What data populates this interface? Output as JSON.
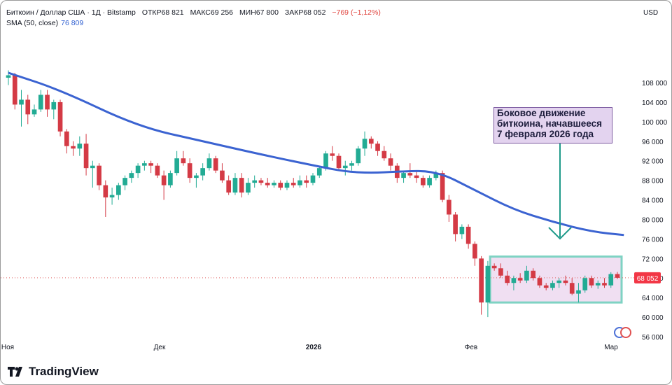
{
  "header": {
    "symbol": "Биткоин / Доллар США · 1Д · Bitstamp",
    "open": "ОТКР68 821",
    "high": "МАКС69 256",
    "low": "МИН67 800",
    "close": "ЗАКР68 052",
    "change": "−769 (−1,12%)"
  },
  "indicator": {
    "label": "SMA (50, close)",
    "value": "76 809"
  },
  "currency": "USD",
  "price_tag": "68 052",
  "annotation": [
    "Боковое движение",
    "биткоина, начавшееся",
    "7 февраля 2026 года"
  ],
  "brand": "TradingView",
  "colors": {
    "up": "#22ab94",
    "down": "#d43a45",
    "sma": "#3b63d1",
    "box_border": "#7fd3c3",
    "box_fill": "#f0dff2",
    "arrow": "#1f9a8a",
    "price_tag": "#f23645"
  },
  "chart_data": {
    "type": "candlestick",
    "title": "Биткоин / Доллар США · 1Д · Bitstamp",
    "y_axis": {
      "ticks": [
        56000,
        60000,
        64000,
        68000,
        72000,
        76000,
        80000,
        84000,
        88000,
        92000,
        96000,
        100000,
        104000,
        108000
      ],
      "tick_labels": [
        "56 000",
        "60 000",
        "64 000",
        "68 000",
        "72 000",
        "76 000",
        "80 000",
        "84 000",
        "88 000",
        "92 000",
        "96 000",
        "100 000",
        "104 000",
        "108 000"
      ],
      "range": [
        55000,
        112000
      ]
    },
    "x_axis": {
      "labels": [
        "Ноя",
        "Дек",
        "2026",
        "Фев",
        "Мар"
      ]
    },
    "ohlc": [
      [
        109000,
        110500,
        107500,
        109500
      ],
      [
        109500,
        110000,
        102500,
        103500
      ],
      [
        103500,
        106500,
        99000,
        104500
      ],
      [
        104500,
        105500,
        99500,
        101500
      ],
      [
        101500,
        103500,
        101000,
        102500
      ],
      [
        102500,
        106500,
        102000,
        105500
      ],
      [
        105500,
        106500,
        101000,
        102500
      ],
      [
        102500,
        104500,
        100500,
        104000
      ],
      [
        104000,
        104500,
        97000,
        98000
      ],
      [
        98000,
        98500,
        93500,
        95000
      ],
      [
        95000,
        96000,
        93000,
        94500
      ],
      [
        94500,
        97000,
        93000,
        95500
      ],
      [
        95500,
        97500,
        89000,
        90500
      ],
      [
        90500,
        92000,
        86500,
        91000
      ],
      [
        91000,
        91500,
        86000,
        87000
      ],
      [
        87000,
        88000,
        80500,
        84500
      ],
      [
        84500,
        86500,
        83000,
        85000
      ],
      [
        85000,
        87500,
        84000,
        87000
      ],
      [
        87000,
        89000,
        86000,
        88500
      ],
      [
        88500,
        90000,
        87500,
        89500
      ],
      [
        89500,
        91500,
        88500,
        91000
      ],
      [
        91000,
        92000,
        90000,
        91500
      ],
      [
        91500,
        92000,
        89500,
        91000
      ],
      [
        91000,
        91500,
        88500,
        89000
      ],
      [
        89000,
        90000,
        84000,
        87000
      ],
      [
        87000,
        90000,
        86500,
        89500
      ],
      [
        89500,
        94000,
        89000,
        92500
      ],
      [
        92500,
        94000,
        91000,
        91500
      ],
      [
        91500,
        92500,
        87500,
        88500
      ],
      [
        88500,
        89500,
        86500,
        89000
      ],
      [
        89000,
        91500,
        88000,
        90500
      ],
      [
        90500,
        93500,
        90000,
        92500
      ],
      [
        92500,
        93000,
        89500,
        90000
      ],
      [
        90000,
        91500,
        87500,
        88000
      ],
      [
        88000,
        89000,
        85000,
        85500
      ],
      [
        85500,
        89500,
        85000,
        88500
      ],
      [
        88500,
        89500,
        84500,
        85500
      ],
      [
        85500,
        88500,
        85000,
        87500
      ],
      [
        87500,
        89000,
        86500,
        88000
      ],
      [
        88000,
        88500,
        87000,
        87500
      ],
      [
        87500,
        88500,
        86500,
        87000
      ],
      [
        87000,
        88000,
        86500,
        87500
      ],
      [
        87500,
        88000,
        86000,
        86500
      ],
      [
        86500,
        88000,
        86000,
        87500
      ],
      [
        87500,
        88500,
        86500,
        87000
      ],
      [
        87000,
        89000,
        86500,
        88000
      ],
      [
        88000,
        89000,
        86500,
        87500
      ],
      [
        87500,
        89500,
        87000,
        89000
      ],
      [
        89000,
        91000,
        88500,
        90500
      ],
      [
        90500,
        94000,
        90000,
        93500
      ],
      [
        93500,
        95000,
        92000,
        93000
      ],
      [
        93000,
        93500,
        90000,
        90500
      ],
      [
        90500,
        92000,
        89000,
        91000
      ],
      [
        91000,
        92000,
        90000,
        91500
      ],
      [
        91500,
        95000,
        91000,
        94500
      ],
      [
        94500,
        98000,
        93000,
        96500
      ],
      [
        96500,
        97000,
        94500,
        95500
      ],
      [
        95500,
        96000,
        93000,
        94000
      ],
      [
        94000,
        95000,
        92000,
        92500
      ],
      [
        92500,
        93500,
        90000,
        91000
      ],
      [
        91000,
        91500,
        87500,
        88500
      ],
      [
        88500,
        90000,
        87500,
        89500
      ],
      [
        89500,
        91500,
        88500,
        89000
      ],
      [
        89000,
        90000,
        87500,
        88500
      ],
      [
        88500,
        89000,
        86500,
        87000
      ],
      [
        87000,
        89000,
        86500,
        88500
      ],
      [
        88500,
        90000,
        88000,
        89500
      ],
      [
        89500,
        90000,
        83500,
        84000
      ],
      [
        84000,
        85000,
        79500,
        81000
      ],
      [
        81000,
        81500,
        75500,
        77000
      ],
      [
        77000,
        79000,
        76000,
        78500
      ],
      [
        78500,
        79000,
        74000,
        75000
      ],
      [
        75000,
        75500,
        70500,
        72000
      ],
      [
        72000,
        72500,
        60500,
        63000
      ],
      [
        63000,
        71500,
        60000,
        70500
      ],
      [
        70500,
        71000,
        69500,
        70000
      ],
      [
        70000,
        71000,
        68000,
        68500
      ],
      [
        68500,
        69500,
        66500,
        67000
      ],
      [
        67000,
        68500,
        65500,
        68000
      ],
      [
        68000,
        69000,
        67000,
        67500
      ],
      [
        67500,
        70500,
        67000,
        69500
      ],
      [
        69500,
        70000,
        67500,
        68000
      ],
      [
        68000,
        68500,
        66000,
        66500
      ],
      [
        66500,
        67000,
        65500,
        66000
      ],
      [
        66000,
        67500,
        65500,
        67000
      ],
      [
        67000,
        68000,
        66000,
        67500
      ],
      [
        67500,
        68500,
        66500,
        67000
      ],
      [
        67000,
        68000,
        64500,
        64800
      ],
      [
        64800,
        67000,
        63000,
        65500
      ],
      [
        65500,
        68500,
        65000,
        68000
      ],
      [
        68000,
        68500,
        66000,
        66500
      ],
      [
        66500,
        67500,
        65800,
        67000
      ],
      [
        67000,
        68000,
        66000,
        66500
      ],
      [
        66500,
        69200,
        66000,
        68821
      ],
      [
        68821,
        69256,
        67800,
        68052
      ]
    ],
    "sma": {
      "name": "SMA (50, close)",
      "points": [
        [
          0,
          110000
        ],
        [
          8,
          106500
        ],
        [
          20,
          99000
        ],
        [
          30,
          96000
        ],
        [
          40,
          93000
        ],
        [
          48,
          90800
        ],
        [
          52,
          89800
        ],
        [
          56,
          89500
        ],
        [
          60,
          89800
        ],
        [
          66,
          90000
        ],
        [
          72,
          86000
        ],
        [
          78,
          82000
        ],
        [
          84,
          79500
        ],
        [
          90,
          77500
        ],
        [
          95,
          76809
        ]
      ]
    },
    "last_price": 68052,
    "range_box": {
      "start_index": 75,
      "end_index": 94,
      "low": 63000,
      "high": 72400
    }
  }
}
